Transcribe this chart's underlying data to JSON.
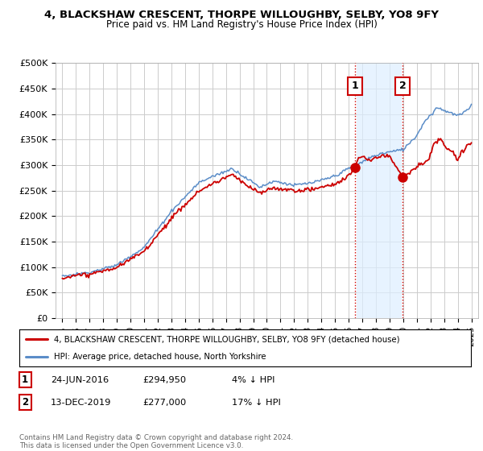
{
  "title": "4, BLACKSHAW CRESCENT, THORPE WILLOUGHBY, SELBY, YO8 9FY",
  "subtitle": "Price paid vs. HM Land Registry's House Price Index (HPI)",
  "ylabel_ticks": [
    "£0",
    "£50K",
    "£100K",
    "£150K",
    "£200K",
    "£250K",
    "£300K",
    "£350K",
    "£400K",
    "£450K",
    "£500K"
  ],
  "ytick_values": [
    0,
    50000,
    100000,
    150000,
    200000,
    250000,
    300000,
    350000,
    400000,
    450000,
    500000
  ],
  "ylim": [
    0,
    500000
  ],
  "xlim_start": 1994.5,
  "xlim_end": 2025.5,
  "hpi_color": "#5b8dc8",
  "price_color": "#cc0000",
  "shade_between_sales_color": "#ddeeff",
  "sale1_year": 2016.48,
  "sale1_price": 294950,
  "sale2_year": 2019.95,
  "sale2_price": 277000,
  "sale1_label": "1",
  "sale2_label": "2",
  "legend_line1": "4, BLACKSHAW CRESCENT, THORPE WILLOUGHBY, SELBY, YO8 9FY (detached house)",
  "legend_line2": "HPI: Average price, detached house, North Yorkshire",
  "table_row1": [
    "1",
    "24-JUN-2016",
    "£294,950",
    "4% ↓ HPI"
  ],
  "table_row2": [
    "2",
    "13-DEC-2019",
    "£277,000",
    "17% ↓ HPI"
  ],
  "footer": "Contains HM Land Registry data © Crown copyright and database right 2024.\nThis data is licensed under the Open Government Licence v3.0.",
  "bg_color": "#ffffff",
  "grid_color": "#cccccc",
  "vline_color": "#cc0000",
  "vline_style": ":",
  "xtick_years": [
    1995,
    1996,
    1997,
    1998,
    1999,
    2000,
    2001,
    2002,
    2003,
    2004,
    2005,
    2006,
    2007,
    2008,
    2009,
    2010,
    2011,
    2012,
    2013,
    2014,
    2015,
    2016,
    2017,
    2018,
    2019,
    2020,
    2021,
    2022,
    2023,
    2024,
    2025
  ]
}
